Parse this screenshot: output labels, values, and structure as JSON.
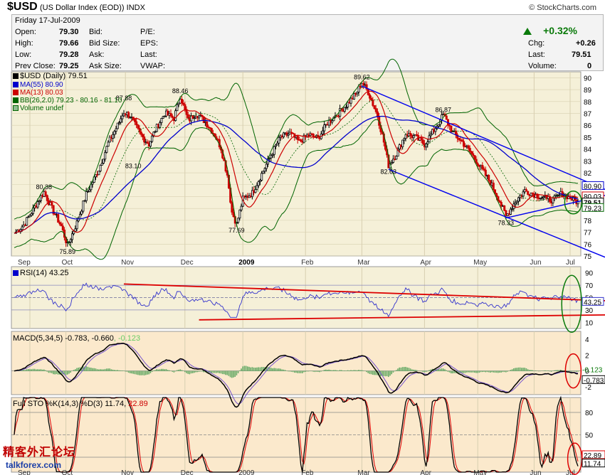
{
  "header": {
    "symbol": "$USD",
    "description": "(US Dollar Index (EOD))",
    "exchange": "INDX",
    "copyright": "© StockCharts.com"
  },
  "quote": {
    "date": "Friday   17-Jul-2009",
    "open_label": "Open:",
    "open": "79.30",
    "high_label": "High:",
    "high": "79.66",
    "low_label": "Low:",
    "low": "79.28",
    "prev_close_label": "Prev Close:",
    "prev_close": "79.25",
    "bid_label": "Bid:",
    "bid_size_label": "Bid Size:",
    "ask_label": "Ask:",
    "ask_size_label": "Ask Size:",
    "pe_label": "P/E:",
    "eps_label": "EPS:",
    "last_label2": "Last:",
    "vwap_label": "VWAP:",
    "change_pct": "+0.32%",
    "chg_label": "Chg:",
    "chg": "+0.26",
    "last_label": "Last:",
    "last": "79.51",
    "volume_label": "Volume:",
    "volume": "0"
  },
  "price_legend": {
    "main": "$USD (Daily) 79.51",
    "ma55": "MA(55) 80.90",
    "ma13": "MA(13) 80.03",
    "bb": "BB(26,2.0) 79.23 - 80.16 - 81.10",
    "volume": "Volume undef"
  },
  "rsi_legend": "RSI(14) 43.25",
  "macd_legend_a": "MACD(5,34,5) -0.783, -0.660",
  "macd_legend_b": ", -0.123",
  "sto_legend_a": "Full STO %K(14,3) %D(3) 11.74, ",
  "sto_legend_b": "22.89",
  "watermark_cn": "精客外汇论坛",
  "watermark_url": "talkforex.com",
  "colors": {
    "up": "#000000",
    "down": "#cc0000",
    "ma55": "#0000cc",
    "ma13": "#cc0000",
    "bb": "#006400",
    "channel": "#0000ee",
    "panel_bg": "#f5f0d8",
    "panel_bg2": "#fbe9cc",
    "grid": "#d8cfb0"
  },
  "chart_data": [
    {
      "type": "candlestick",
      "title": "$USD (Daily) 79.51",
      "x_labels": [
        "Sep",
        "Oct",
        "Nov",
        "Dec",
        "2009",
        "Feb",
        "Mar",
        "Apr",
        "May",
        "Jun",
        "Jul"
      ],
      "y_ticks": [
        75,
        76,
        77,
        78,
        79,
        80,
        81,
        82,
        83,
        84,
        85,
        86,
        87,
        88,
        89,
        90
      ],
      "ylim": [
        75,
        90.5
      ],
      "series": [
        {
          "name": "$USD",
          "close_path": [
            [
              0,
              76.9
            ],
            [
              6,
              77.6
            ],
            [
              12,
              78.9
            ],
            [
              16,
              79.8
            ],
            [
              19,
              80.38
            ],
            [
              24,
              79.0
            ],
            [
              30,
              77.5
            ],
            [
              34,
              75.89
            ],
            [
              40,
              77.8
            ],
            [
              46,
              80.2
            ],
            [
              54,
              82.3
            ],
            [
              60,
              84.5
            ],
            [
              66,
              86.0
            ],
            [
              70,
              87.1
            ],
            [
              74,
              86.8
            ],
            [
              80,
              85.3
            ],
            [
              86,
              84.4
            ],
            [
              90,
              85.6
            ],
            [
              96,
              87.0
            ],
            [
              102,
              86.6
            ],
            [
              106,
              88.46
            ],
            [
              111,
              86.4
            ],
            [
              116,
              87.0
            ],
            [
              122,
              86.3
            ],
            [
              128,
              85.2
            ],
            [
              132,
              84.1
            ],
            [
              136,
              81.8
            ],
            [
              139,
              78.7
            ],
            [
              142,
              77.69
            ],
            [
              146,
              79.8
            ],
            [
              152,
              80.3
            ],
            [
              158,
              81.9
            ],
            [
              164,
              83.5
            ],
            [
              170,
              85.0
            ],
            [
              176,
              85.3
            ],
            [
              182,
              84.6
            ],
            [
              188,
              85.2
            ],
            [
              194,
              84.9
            ],
            [
              200,
              86.2
            ],
            [
              206,
              86.9
            ],
            [
              212,
              87.7
            ],
            [
              218,
              88.6
            ],
            [
              222,
              89.62
            ],
            [
              226,
              88.8
            ],
            [
              232,
              86.8
            ],
            [
              236,
              84.6
            ],
            [
              239,
              82.63
            ],
            [
              244,
              83.6
            ],
            [
              250,
              85.3
            ],
            [
              256,
              85.0
            ],
            [
              262,
              84.4
            ],
            [
              268,
              85.6
            ],
            [
              274,
              86.87
            ],
            [
              280,
              85.4
            ],
            [
              286,
              84.6
            ],
            [
              292,
              83.6
            ],
            [
              298,
              82.4
            ],
            [
              304,
              81.2
            ],
            [
              310,
              79.6
            ],
            [
              314,
              78.33
            ],
            [
              320,
              79.6
            ],
            [
              326,
              80.5
            ],
            [
              332,
              80.2
            ],
            [
              338,
              79.9
            ],
            [
              344,
              79.7
            ],
            [
              350,
              80.3
            ],
            [
              356,
              79.8
            ],
            [
              360,
              79.51
            ]
          ]
        },
        {
          "name": "MA(55)",
          "value_last": 80.9
        },
        {
          "name": "MA(13)",
          "value_last": 80.03
        },
        {
          "name": "BB(26,2.0)",
          "lower": 79.23,
          "mid": 80.16,
          "upper": 81.1
        }
      ],
      "annotations": [
        {
          "x": 34,
          "y": 75.89,
          "label": "75.89"
        },
        {
          "x": 19,
          "y": 80.38,
          "label": "80.38"
        },
        {
          "x": 70,
          "y": 87.88,
          "label": "87.88"
        },
        {
          "x": 76,
          "y": 83.1,
          "label": "83.10"
        },
        {
          "x": 106,
          "y": 88.46,
          "label": "88.46"
        },
        {
          "x": 142,
          "y": 77.69,
          "label": "77.69"
        },
        {
          "x": 222,
          "y": 89.62,
          "label": "89.62"
        },
        {
          "x": 239,
          "y": 82.63,
          "label": "82.63"
        },
        {
          "x": 274,
          "y": 86.87,
          "label": "86.87"
        },
        {
          "x": 314,
          "y": 78.33,
          "label": "78.33"
        }
      ],
      "price_tags": [
        "80.90",
        "80.03",
        "79.51",
        "79.23"
      ]
    },
    {
      "type": "line",
      "title": "RSI(14) 43.25",
      "y_ticks": [
        10,
        30,
        50,
        70,
        90
      ],
      "ylim": [
        0,
        100
      ],
      "series": [
        {
          "name": "RSI(14)",
          "value_last": 43.25
        }
      ],
      "price_tags": [
        "43.25"
      ]
    },
    {
      "type": "line",
      "title": "MACD(5,34,5) -0.783, -0.660, -0.123",
      "y_ticks": [
        -2,
        0,
        2,
        4
      ],
      "ylim": [
        -3,
        5
      ],
      "series": [
        {
          "name": "MACD",
          "value_last": -0.783
        },
        {
          "name": "Signal",
          "value_last": -0.66
        },
        {
          "name": "Histogram",
          "value_last": -0.123
        }
      ],
      "price_tags": [
        "-0.123",
        "-0.783"
      ]
    },
    {
      "type": "line",
      "title": "Full STO %K(14,3) %D(3) 11.74, 22.89",
      "y_ticks": [
        20,
        50,
        80
      ],
      "ylim": [
        0,
        100
      ],
      "series": [
        {
          "name": "%K",
          "value_last": 11.74
        },
        {
          "name": "%D",
          "value_last": 22.89
        }
      ],
      "price_tags": [
        "22.89",
        "11.74"
      ]
    }
  ]
}
